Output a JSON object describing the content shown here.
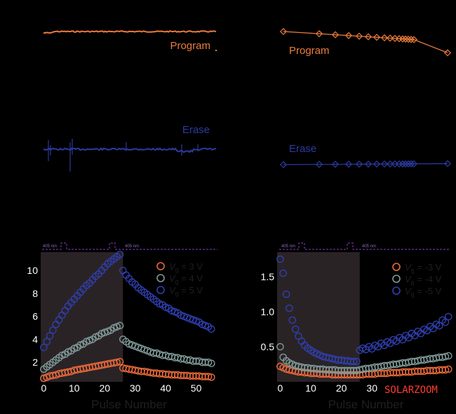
{
  "colors": {
    "background": "#000000",
    "program": "#ec7c3c",
    "erase": "#2c3aa0",
    "shade": "#2a2326",
    "plot_bg": "#000000",
    "pulse": "#7030a0",
    "orange": "#ec6a3a",
    "gray": "#7f9a98",
    "blue": "#2f3fae",
    "axis_text": "#1f1f1f",
    "tick_text": "#ffffff",
    "watermark": "#ff3b30"
  },
  "watermark": "SOLARZOOM",
  "top_left": {
    "program_label": "Program",
    "erase_label": "Erase"
  },
  "top_right": {
    "program_label": "Program",
    "erase_label": "Erase",
    "program_points": 17,
    "erase_points": 17
  },
  "pulse_label": "405 nm",
  "chart_data": [
    {
      "type": "scatter",
      "xlabel": "Pulse Number",
      "ylabel": "",
      "xlim": [
        -1,
        57
      ],
      "ylim": [
        0.3,
        11.6
      ],
      "xticks": [
        0,
        10,
        20,
        30,
        40,
        50
      ],
      "yticks": [
        2,
        4,
        6,
        8,
        10
      ],
      "shaded_x": [
        -1,
        26
      ],
      "legend_position": "top-right",
      "series": [
        {
          "name": "V_g = 3 V",
          "color_key": "orange",
          "x": [
            0,
            1,
            2,
            3,
            4,
            5,
            6,
            7,
            8,
            9,
            10,
            11,
            12,
            13,
            14,
            15,
            16,
            17,
            18,
            19,
            20,
            21,
            22,
            23,
            24,
            25,
            26,
            27,
            28,
            29,
            30,
            31,
            32,
            33,
            34,
            35,
            36,
            37,
            38,
            39,
            40,
            41,
            42,
            43,
            44,
            45,
            46,
            47,
            48,
            49,
            50,
            51,
            52,
            53,
            54,
            55
          ],
          "y": [
            0.6,
            0.7,
            0.8,
            0.85,
            0.9,
            1.0,
            1.05,
            1.1,
            1.15,
            1.2,
            1.3,
            1.35,
            1.4,
            1.45,
            1.5,
            1.55,
            1.6,
            1.65,
            1.7,
            1.75,
            1.8,
            1.85,
            1.9,
            1.95,
            2.0,
            2.05,
            1.5,
            1.45,
            1.4,
            1.35,
            1.3,
            1.25,
            1.2,
            1.2,
            1.15,
            1.1,
            1.05,
            1.05,
            1.0,
            1.0,
            0.95,
            0.95,
            0.9,
            0.9,
            0.9,
            0.85,
            0.85,
            0.85,
            0.8,
            0.8,
            0.8,
            0.8,
            0.75,
            0.75,
            0.75,
            0.7
          ]
        },
        {
          "name": "V_g = 4 V",
          "color_key": "gray",
          "x": [
            0,
            1,
            2,
            3,
            4,
            5,
            6,
            7,
            8,
            9,
            10,
            11,
            12,
            13,
            14,
            15,
            16,
            17,
            18,
            19,
            20,
            21,
            22,
            23,
            24,
            25,
            26,
            27,
            28,
            29,
            30,
            31,
            32,
            33,
            34,
            35,
            36,
            37,
            38,
            39,
            40,
            41,
            42,
            43,
            44,
            45,
            46,
            47,
            48,
            49,
            50,
            51,
            52,
            53,
            54,
            55
          ],
          "y": [
            1.4,
            1.6,
            1.8,
            2.0,
            2.2,
            2.4,
            2.6,
            2.7,
            2.9,
            3.0,
            3.2,
            3.3,
            3.5,
            3.6,
            3.8,
            3.9,
            4.0,
            4.2,
            4.3,
            4.5,
            4.6,
            4.7,
            4.8,
            5.0,
            5.1,
            5.2,
            4.0,
            3.8,
            3.6,
            3.5,
            3.4,
            3.3,
            3.2,
            3.1,
            3.0,
            2.9,
            2.8,
            2.8,
            2.7,
            2.6,
            2.6,
            2.5,
            2.5,
            2.4,
            2.4,
            2.3,
            2.3,
            2.2,
            2.2,
            2.1,
            2.1,
            2.1,
            2.0,
            2.0,
            2.0,
            1.9
          ]
        },
        {
          "name": "V_g = 5 V",
          "color_key": "blue",
          "x": [
            0,
            1,
            2,
            3,
            4,
            5,
            6,
            7,
            8,
            9,
            10,
            11,
            12,
            13,
            14,
            15,
            16,
            17,
            18,
            19,
            20,
            21,
            22,
            23,
            24,
            25,
            26,
            27,
            28,
            29,
            30,
            31,
            32,
            33,
            34,
            35,
            36,
            37,
            38,
            39,
            40,
            41,
            42,
            43,
            44,
            45,
            46,
            47,
            48,
            49,
            50,
            51,
            52,
            53,
            54,
            55
          ],
          "y": [
            3.3,
            3.8,
            4.3,
            4.8,
            5.3,
            5.7,
            6.1,
            6.5,
            6.9,
            7.2,
            7.5,
            7.8,
            8.1,
            8.4,
            8.7,
            8.9,
            9.2,
            9.5,
            9.7,
            10.0,
            10.3,
            10.6,
            10.8,
            11.0,
            11.2,
            11.4,
            10.0,
            9.6,
            9.3,
            9.0,
            8.8,
            8.5,
            8.3,
            8.1,
            7.9,
            7.7,
            7.5,
            7.3,
            7.1,
            7.0,
            6.8,
            6.7,
            6.5,
            6.4,
            6.3,
            6.1,
            6.0,
            5.9,
            5.8,
            5.7,
            5.6,
            5.5,
            5.3,
            5.2,
            5.1,
            4.9
          ]
        }
      ]
    },
    {
      "type": "scatter",
      "xlabel": "Pulse Number",
      "ylabel": "",
      "xlim": [
        -1,
        57
      ],
      "ylim": [
        0.0,
        1.85
      ],
      "xticks": [
        0,
        10,
        20,
        30
      ],
      "yticks": [
        0.5,
        1.0,
        1.5
      ],
      "shaded_x": [
        -1,
        26
      ],
      "legend_position": "top-right",
      "series": [
        {
          "name": "V_g = -3 V",
          "color_key": "orange",
          "x": [
            0,
            1,
            2,
            3,
            4,
            5,
            6,
            7,
            8,
            9,
            10,
            11,
            12,
            13,
            14,
            15,
            16,
            17,
            18,
            19,
            20,
            21,
            22,
            23,
            24,
            25,
            26,
            27,
            28,
            29,
            30,
            31,
            32,
            33,
            34,
            35,
            36,
            37,
            38,
            39,
            40,
            41,
            42,
            43,
            44,
            45,
            46,
            47,
            48,
            49,
            50,
            51,
            52,
            53,
            54,
            55
          ],
          "y": [
            0.22,
            0.2,
            0.18,
            0.17,
            0.16,
            0.15,
            0.14,
            0.14,
            0.13,
            0.13,
            0.12,
            0.12,
            0.12,
            0.11,
            0.11,
            0.11,
            0.11,
            0.1,
            0.1,
            0.1,
            0.1,
            0.1,
            0.1,
            0.1,
            0.1,
            0.1,
            0.1,
            0.1,
            0.11,
            0.11,
            0.11,
            0.11,
            0.12,
            0.12,
            0.12,
            0.12,
            0.13,
            0.13,
            0.13,
            0.13,
            0.14,
            0.14,
            0.14,
            0.14,
            0.15,
            0.15,
            0.15,
            0.15,
            0.16,
            0.16,
            0.16,
            0.16,
            0.17,
            0.17,
            0.17,
            0.18
          ]
        },
        {
          "name": "V_g = -4 V",
          "color_key": "gray",
          "x": [
            0,
            1,
            2,
            3,
            4,
            5,
            6,
            7,
            8,
            9,
            10,
            11,
            12,
            13,
            14,
            15,
            16,
            17,
            18,
            19,
            20,
            21,
            22,
            23,
            24,
            25,
            26,
            27,
            28,
            29,
            30,
            31,
            32,
            33,
            34,
            35,
            36,
            37,
            38,
            39,
            40,
            41,
            42,
            43,
            44,
            45,
            46,
            47,
            48,
            49,
            50,
            51,
            52,
            53,
            54,
            55
          ],
          "y": [
            0.5,
            0.35,
            0.3,
            0.27,
            0.25,
            0.23,
            0.22,
            0.21,
            0.2,
            0.2,
            0.19,
            0.19,
            0.18,
            0.18,
            0.18,
            0.17,
            0.17,
            0.17,
            0.17,
            0.16,
            0.16,
            0.16,
            0.16,
            0.16,
            0.16,
            0.16,
            0.17,
            0.18,
            0.19,
            0.19,
            0.2,
            0.21,
            0.21,
            0.22,
            0.23,
            0.23,
            0.24,
            0.25,
            0.25,
            0.26,
            0.27,
            0.27,
            0.28,
            0.29,
            0.29,
            0.3,
            0.31,
            0.31,
            0.32,
            0.33,
            0.33,
            0.34,
            0.35,
            0.35,
            0.36,
            0.37
          ]
        },
        {
          "name": "V_g = -5 V",
          "color_key": "blue",
          "x": [
            0,
            1,
            2,
            3,
            4,
            5,
            6,
            7,
            8,
            9,
            10,
            11,
            12,
            13,
            14,
            15,
            16,
            17,
            18,
            19,
            20,
            21,
            22,
            23,
            24,
            25,
            26,
            27,
            28,
            29,
            30,
            31,
            32,
            33,
            34,
            35,
            36,
            37,
            38,
            39,
            40,
            41,
            42,
            43,
            44,
            45,
            46,
            47,
            48,
            49,
            50,
            51,
            52,
            53,
            54,
            55
          ],
          "y": [
            1.75,
            1.55,
            1.25,
            1.05,
            0.88,
            0.75,
            0.65,
            0.58,
            0.52,
            0.48,
            0.45,
            0.42,
            0.4,
            0.38,
            0.36,
            0.35,
            0.34,
            0.33,
            0.32,
            0.31,
            0.31,
            0.3,
            0.3,
            0.29,
            0.29,
            0.29,
            0.45,
            0.48,
            0.46,
            0.5,
            0.47,
            0.52,
            0.5,
            0.55,
            0.52,
            0.57,
            0.55,
            0.6,
            0.58,
            0.63,
            0.6,
            0.66,
            0.63,
            0.69,
            0.66,
            0.72,
            0.69,
            0.75,
            0.73,
            0.79,
            0.76,
            0.82,
            0.8,
            0.88,
            0.85,
            0.93
          ]
        }
      ]
    }
  ]
}
